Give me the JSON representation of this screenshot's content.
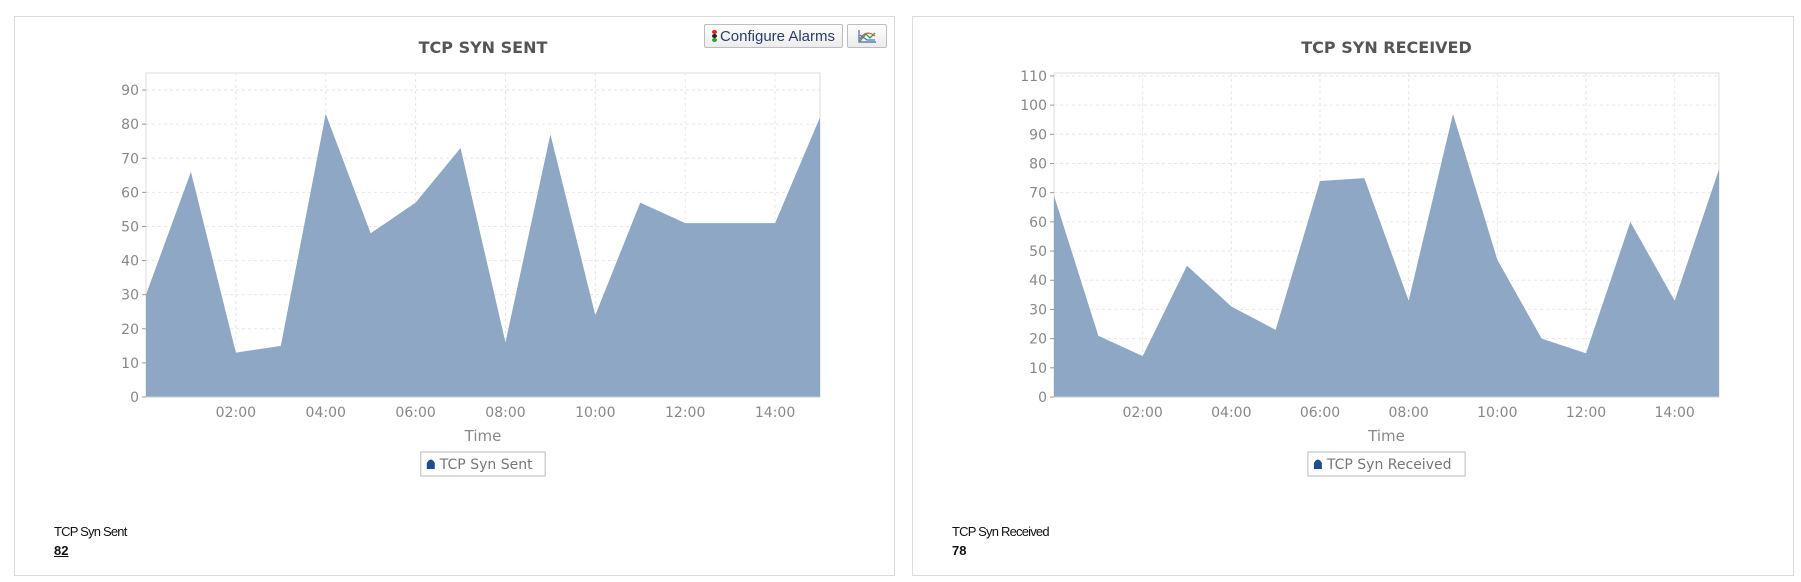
{
  "toolbar": {
    "configure_alarms_label": "Configure Alarms",
    "configure_alarms_icon": "traffic-light-icon",
    "chart_type_icon": "line-chart-icon"
  },
  "colors": {
    "area_fill": "#8ea7c4",
    "legend_marker": "#1f4e8c",
    "grid": "#e6e6e6",
    "axis_text": "#888888"
  },
  "chart_data": [
    {
      "type": "area",
      "title": "TCP SYN SENT",
      "xlabel": "Time",
      "ylabel": "",
      "x": [
        "00:00",
        "01:00",
        "02:00",
        "03:00",
        "04:00",
        "05:00",
        "06:00",
        "07:00",
        "08:00",
        "09:00",
        "10:00",
        "11:00",
        "12:00",
        "13:00",
        "14:00",
        "15:00"
      ],
      "xticks": [
        "02:00",
        "04:00",
        "06:00",
        "08:00",
        "10:00",
        "12:00",
        "14:00"
      ],
      "series": [
        {
          "name": "TCP Syn Sent",
          "values": [
            30,
            66,
            13,
            15,
            83,
            48,
            57,
            73,
            16,
            77,
            24,
            57,
            51,
            51,
            51,
            82
          ]
        }
      ],
      "ylim": [
        0,
        95
      ],
      "yticks": [
        0,
        10,
        20,
        30,
        40,
        50,
        60,
        70,
        80,
        90
      ],
      "grid": true,
      "legend": "bottom-center"
    },
    {
      "type": "area",
      "title": "TCP SYN RECEIVED",
      "xlabel": "Time",
      "ylabel": "",
      "x": [
        "00:00",
        "01:00",
        "02:00",
        "03:00",
        "04:00",
        "05:00",
        "06:00",
        "07:00",
        "08:00",
        "09:00",
        "10:00",
        "11:00",
        "12:00",
        "13:00",
        "14:00",
        "15:00"
      ],
      "xticks": [
        "02:00",
        "04:00",
        "06:00",
        "08:00",
        "10:00",
        "12:00",
        "14:00"
      ],
      "series": [
        {
          "name": "TCP Syn Received",
          "values": [
            69,
            21,
            14,
            45,
            31,
            23,
            74,
            75,
            33,
            97,
            47,
            20,
            15,
            60,
            33,
            78
          ]
        }
      ],
      "ylim": [
        0,
        111
      ],
      "yticks": [
        0,
        10,
        20,
        30,
        40,
        50,
        60,
        70,
        80,
        90,
        100,
        110
      ],
      "grid": true,
      "legend": "bottom-center"
    }
  ],
  "summary": [
    {
      "label": "TCP Syn Sent",
      "value": "82"
    },
    {
      "label": "TCP Syn Received",
      "value": "78"
    }
  ]
}
